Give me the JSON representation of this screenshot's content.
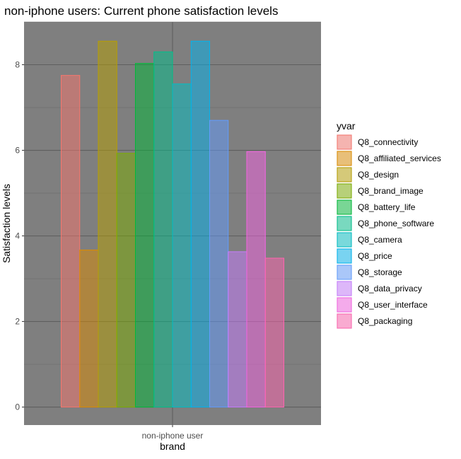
{
  "chart_data": {
    "type": "bar",
    "title": "non-iphone users: Current phone satisfaction levels",
    "xlabel": "brand",
    "ylabel": "Satisfaction levels",
    "categories": [
      "non-iphone user"
    ],
    "ylim": [
      -0.42,
      9.0
    ],
    "yticks": [
      0,
      2,
      4,
      6,
      8
    ],
    "grid": true,
    "legend_title": "yvar",
    "legend_position": "right",
    "panel_color": "#7f7f7f",
    "series": [
      {
        "name": "Q8_connectivity",
        "values": [
          7.75
        ],
        "color": "#F8766D"
      },
      {
        "name": "Q8_affiliated_services",
        "values": [
          3.67
        ],
        "color": "#DE8C00"
      },
      {
        "name": "Q8_design",
        "values": [
          8.55
        ],
        "color": "#B79F00"
      },
      {
        "name": "Q8_brand_image",
        "values": [
          5.93
        ],
        "color": "#7CAE00"
      },
      {
        "name": "Q8_battery_life",
        "values": [
          8.03
        ],
        "color": "#00BA38"
      },
      {
        "name": "Q8_phone_software",
        "values": [
          8.3
        ],
        "color": "#00C08B"
      },
      {
        "name": "Q8_camera",
        "values": [
          7.55
        ],
        "color": "#00BFC4"
      },
      {
        "name": "Q8_price",
        "values": [
          8.55
        ],
        "color": "#00B4F0"
      },
      {
        "name": "Q8_storage",
        "values": [
          6.7
        ],
        "color": "#619CFF"
      },
      {
        "name": "Q8_data_privacy",
        "values": [
          3.63
        ],
        "color": "#C77CFF"
      },
      {
        "name": "Q8_user_interface",
        "values": [
          5.97
        ],
        "color": "#F564E3"
      },
      {
        "name": "Q8_packaging",
        "values": [
          3.48
        ],
        "color": "#FF64B0"
      }
    ]
  }
}
